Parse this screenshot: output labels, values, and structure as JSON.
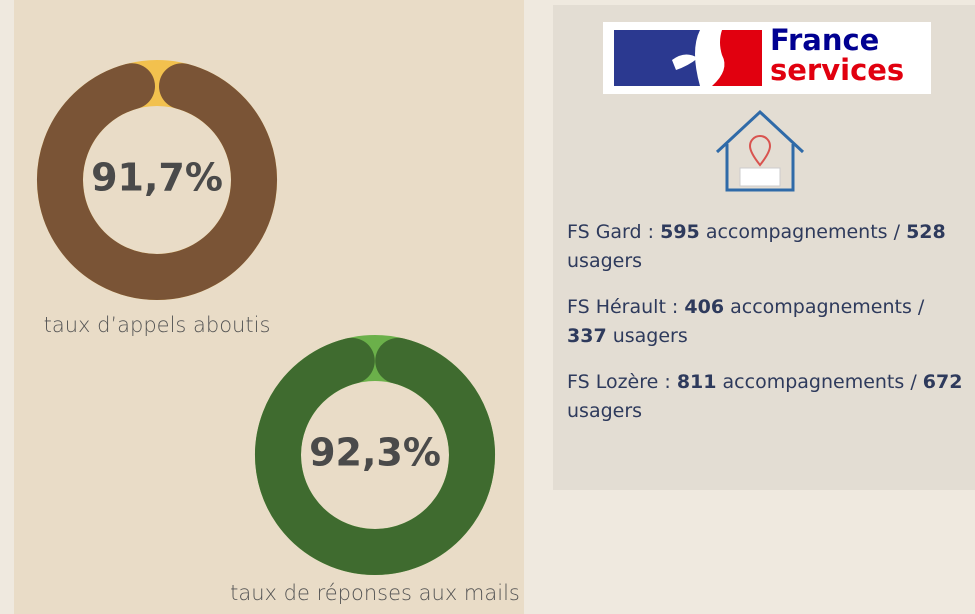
{
  "chart_data": [
    {
      "type": "donut",
      "values": [
        91.7
      ],
      "value_labels": [
        "91,7%"
      ],
      "title": "taux d’appels aboutis",
      "color": "#7a5436",
      "rest_color": "#f2c14e"
    },
    {
      "type": "donut",
      "values": [
        92.3
      ],
      "value_labels": [
        "92,3%"
      ],
      "title": "taux de réponses aux mails",
      "color": "#3f6b2f",
      "rest_color": "#6bb04a"
    }
  ],
  "panel": {
    "logo": {
      "line1": "France",
      "line2": "services"
    },
    "items": [
      {
        "label": "FS Gard :",
        "count1": 595,
        "unit1": "accompagnements /",
        "count2": 528,
        "unit2": "usagers"
      },
      {
        "label": "FS Hérault :",
        "count1": 406,
        "unit1": "accompagnements /",
        "count2": 337,
        "unit2": "usagers"
      },
      {
        "label": "FS Lozère :",
        "count1": 811,
        "unit1": "accompagnements /",
        "count2": 672,
        "unit2": "usagers"
      }
    ]
  }
}
